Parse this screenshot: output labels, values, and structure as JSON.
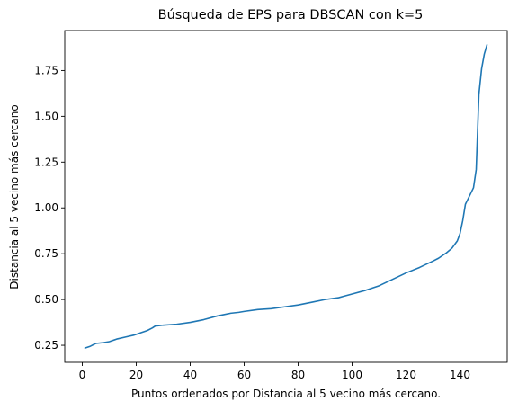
{
  "chart_data": {
    "type": "line",
    "title": "Búsqueda de EPS para DBSCAN con k=5",
    "xlabel": "Puntos ordenados por Distancia al 5 vecino más cercano.",
    "ylabel": "Distancia al 5 vecino más cercano",
    "xlim": [
      -6.5,
      157.5
    ],
    "ylim": [
      0.157,
      1.968
    ],
    "xticks": [
      0,
      20,
      40,
      60,
      80,
      100,
      120,
      140
    ],
    "yticks": [
      0.25,
      0.5,
      0.75,
      1.0,
      1.25,
      1.5,
      1.75
    ],
    "ytick_labels": [
      "0.25",
      "0.50",
      "0.75",
      "1.00",
      "1.25",
      "1.50",
      "1.75"
    ],
    "grid": false,
    "line_color": "#1f77b4",
    "series": [
      {
        "x": [
          1,
          3,
          5,
          8,
          10,
          13,
          16,
          19,
          20,
          22,
          24,
          26,
          27,
          30,
          35,
          40,
          45,
          50,
          55,
          58,
          60,
          65,
          70,
          75,
          80,
          85,
          90,
          95,
          100,
          105,
          110,
          115,
          120,
          125,
          130,
          132,
          135,
          137,
          139,
          140,
          141,
          142,
          143,
          144,
          145,
          146,
          147,
          148,
          149,
          150
        ],
        "y": [
          0.235,
          0.245,
          0.26,
          0.265,
          0.27,
          0.285,
          0.295,
          0.305,
          0.31,
          0.32,
          0.33,
          0.345,
          0.355,
          0.36,
          0.365,
          0.375,
          0.39,
          0.41,
          0.425,
          0.43,
          0.435,
          0.445,
          0.45,
          0.46,
          0.47,
          0.485,
          0.5,
          0.51,
          0.53,
          0.55,
          0.575,
          0.61,
          0.645,
          0.675,
          0.71,
          0.725,
          0.755,
          0.78,
          0.82,
          0.86,
          0.93,
          1.02,
          1.05,
          1.08,
          1.11,
          1.21,
          1.62,
          1.76,
          1.84,
          1.89
        ]
      }
    ]
  }
}
